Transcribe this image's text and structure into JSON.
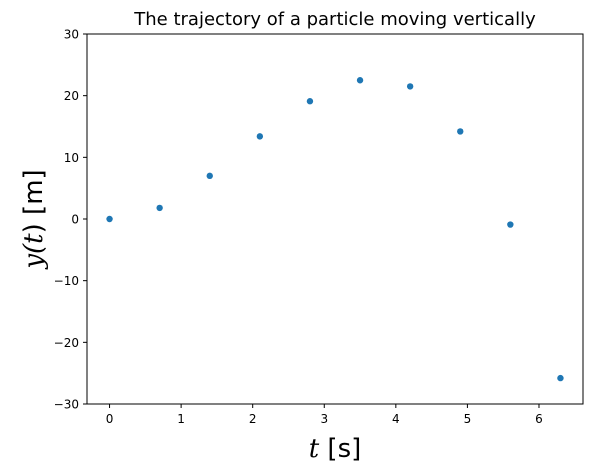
{
  "chart_data": {
    "type": "scatter",
    "title": "The trajectory of a particle moving vertically",
    "xlabel": {
      "var": "t",
      "unit": " [s]"
    },
    "ylabel": {
      "prefix": "y(",
      "var": "t",
      "suffix": ") [m]"
    },
    "xlim": [
      -0.315,
      6.615
    ],
    "ylim": [
      -30,
      30
    ],
    "xticks": [
      0,
      1,
      2,
      3,
      4,
      5,
      6
    ],
    "xtick_labels": [
      "0",
      "1",
      "2",
      "3",
      "4",
      "5",
      "6"
    ],
    "yticks": [
      -30,
      -20,
      -10,
      0,
      10,
      20,
      30
    ],
    "ytick_labels": [
      "−30",
      "−20",
      "−10",
      "0",
      "10",
      "20",
      "30"
    ],
    "grid": false,
    "marker_color": "#1f77b4",
    "x": [
      0,
      0.7,
      1.4,
      2.1,
      2.8,
      3.5,
      4.2,
      4.9,
      5.6,
      6.3
    ],
    "y": [
      0,
      1.8,
      7.0,
      13.4,
      19.1,
      22.5,
      21.5,
      14.2,
      -0.9,
      -25.8
    ]
  }
}
